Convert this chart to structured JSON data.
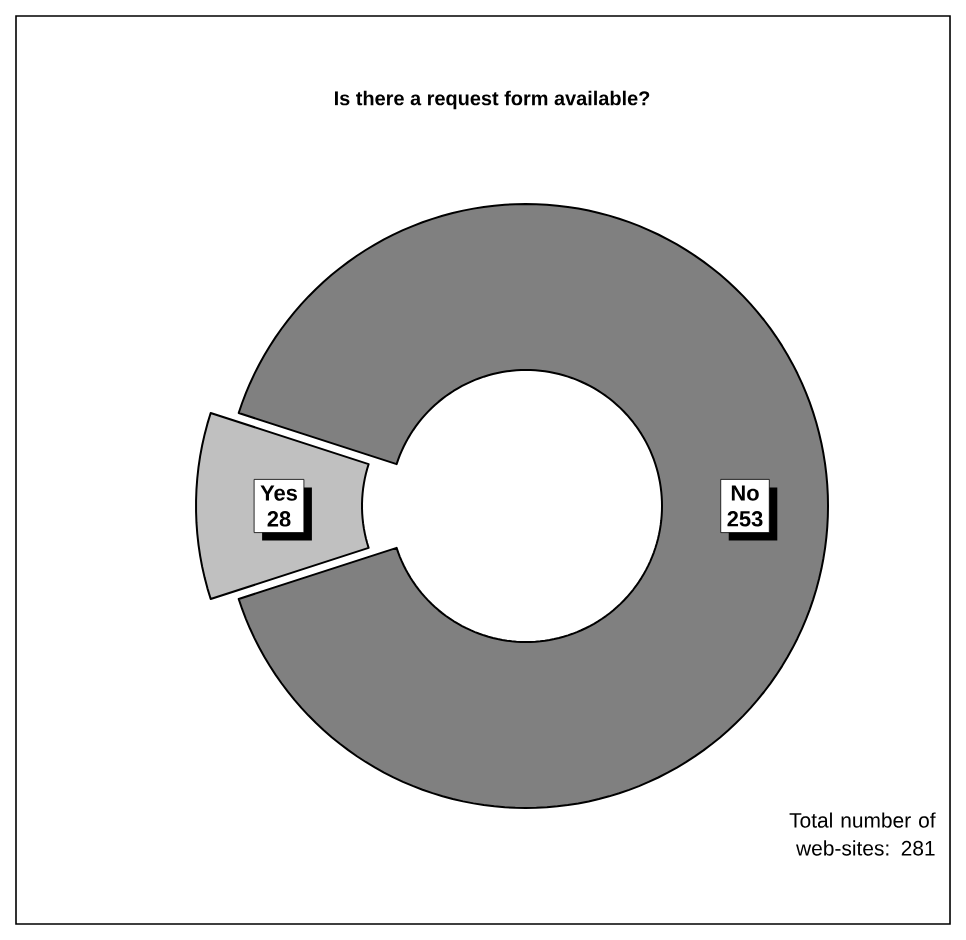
{
  "chart_data": {
    "type": "donut",
    "title": "Is there a request form available?",
    "categories": [
      "Yes",
      "No"
    ],
    "values": [
      28,
      253
    ],
    "colors": [
      "#c0c0c0",
      "#808080"
    ],
    "data_labels": true,
    "annotations": [
      "Total number of web-sites: 281"
    ]
  }
}
